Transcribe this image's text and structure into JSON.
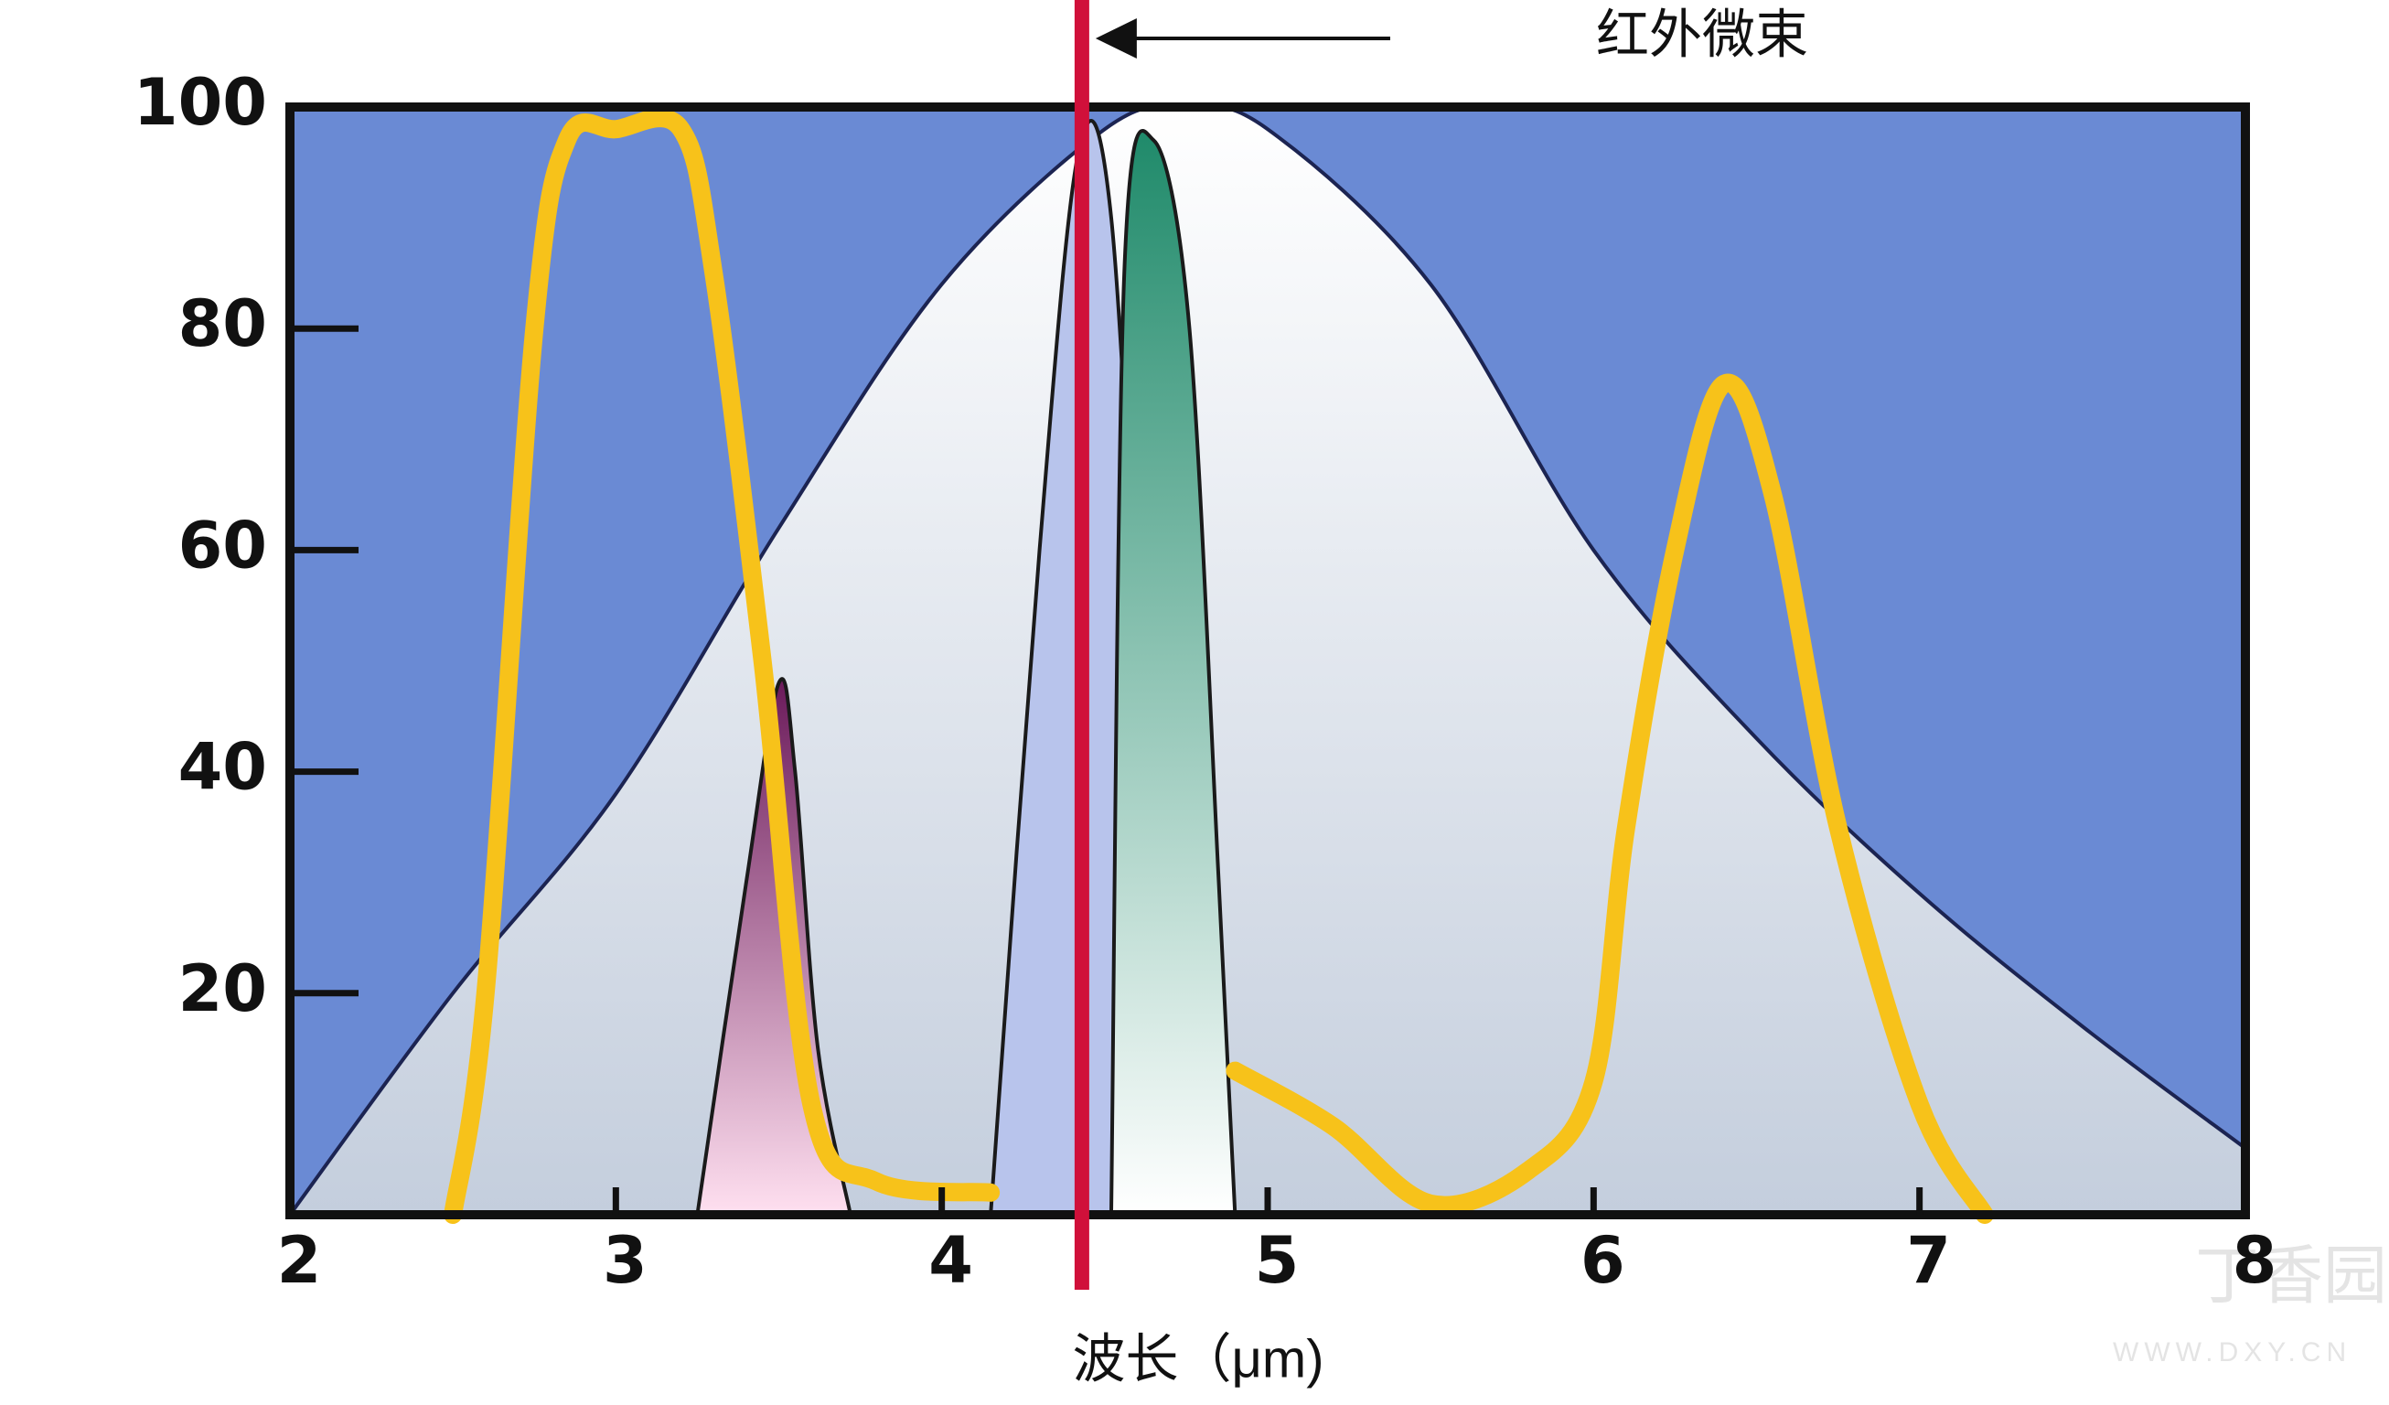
{
  "chart_data": {
    "type": "line",
    "annotation": "红外微束",
    "x_label": "波长（μm)",
    "watermark": "丁香园",
    "watermark_url": "WWW.DXY.CN",
    "background": "#6a8ad4",
    "xlim": [
      2,
      8
    ],
    "ylim": [
      0,
      100
    ],
    "xticks": [
      2,
      3,
      4,
      5,
      6,
      7,
      8
    ],
    "yticks": [
      20,
      40,
      60,
      80,
      100
    ],
    "vline": {
      "x": 4.43,
      "color": "#d0103a"
    },
    "series": [
      {
        "color": "#1c2452",
        "fill": [
          "#ffffff",
          "#c4cedd"
        ],
        "x": [
          2,
          2.5,
          3,
          3.5,
          4,
          4.5,
          4.75,
          5,
          5.5,
          6,
          6.5,
          7,
          7.5,
          8
        ],
        "values": [
          0,
          20,
          38,
          62,
          84,
          98,
          100,
          98,
          84,
          60,
          43,
          29,
          17,
          6
        ]
      },
      {
        "color": "#1a1a1a",
        "fill": [
          "#6b1a5a",
          "#ffe0f0"
        ],
        "x": [
          3.25,
          3.4,
          3.5,
          3.55,
          3.62,
          3.72
        ],
        "values": [
          0,
          30,
          48,
          40,
          15,
          0
        ]
      },
      {
        "color": "#1a1a1a",
        "fill": [
          "#b8c4ec",
          "#b8c4ec"
        ],
        "x": [
          4.15,
          4.3,
          4.42,
          4.52,
          4.62,
          4.7
        ],
        "values": [
          0,
          60,
          96,
          90,
          40,
          0
        ]
      },
      {
        "color": "#1a1a1a",
        "fill": [
          "#1f8a6a",
          "#ffffff"
        ],
        "x": [
          4.52,
          4.56,
          4.65,
          4.76,
          4.85,
          4.9
        ],
        "values": [
          0,
          85,
          97,
          80,
          30,
          0
        ]
      },
      {
        "color": "#f7c21a",
        "x": [
          2.5,
          2.6,
          2.75,
          2.85,
          3,
          3.2,
          3.3,
          3.45,
          3.6,
          3.8,
          4.15,
          null,
          4.9,
          5.2,
          5.5,
          5.8,
          6.0,
          6.1,
          6.25,
          6.4,
          6.55,
          6.75,
          7.0,
          7.2
        ],
        "values": [
          0,
          20,
          80,
          97,
          98,
          98,
          85,
          50,
          10,
          3,
          2,
          null,
          13,
          8,
          1,
          4,
          12,
          35,
          60,
          75,
          65,
          35,
          10,
          0
        ]
      }
    ]
  }
}
